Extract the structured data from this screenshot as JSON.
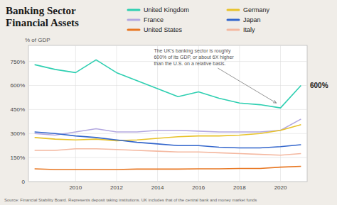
{
  "chart_data": {
    "type": "line",
    "title": "Banking Sector\nFinancial Assets",
    "ylabel": "% of GDP",
    "source": "Source: Financial Stability Board. Represents deposit taking institutions. UK includes that of the central bank and money market funds",
    "annotations": [
      {
        "text": "The UK’s banking sector is roughly\n600% of its GDP, or about 6X higher\nthan the U.S. on a relative basis.",
        "x": 2019.8,
        "y": 490
      },
      {
        "text": "600%",
        "y": 600
      }
    ],
    "x": [
      2008,
      2009,
      2010,
      2011,
      2012,
      2013,
      2014,
      2015,
      2016,
      2017,
      2018,
      2019,
      2020,
      2021
    ],
    "series": [
      {
        "name": "United Kingdom",
        "color": "#2ecfb1",
        "values": [
          730,
          700,
          680,
          760,
          680,
          630,
          580,
          530,
          560,
          520,
          490,
          480,
          460,
          600
        ]
      },
      {
        "name": "France",
        "color": "#b3a8e0",
        "values": [
          300,
          290,
          310,
          330,
          310,
          310,
          320,
          320,
          315,
          310,
          310,
          310,
          320,
          390
        ]
      },
      {
        "name": "United States",
        "color": "#e87722",
        "values": [
          80,
          75,
          75,
          75,
          75,
          78,
          78,
          78,
          80,
          80,
          82,
          82,
          90,
          95
        ]
      },
      {
        "name": "Germany",
        "color": "#e8c229",
        "values": [
          275,
          265,
          260,
          265,
          255,
          260,
          270,
          280,
          285,
          285,
          290,
          300,
          320,
          355
        ]
      },
      {
        "name": "Japan",
        "color": "#3366cc",
        "values": [
          310,
          300,
          285,
          275,
          260,
          245,
          235,
          225,
          225,
          215,
          210,
          210,
          218,
          230
        ]
      },
      {
        "name": "Italy",
        "color": "#f4b8a0",
        "values": [
          195,
          195,
          205,
          205,
          200,
          195,
          190,
          185,
          185,
          180,
          175,
          170,
          165,
          175
        ]
      }
    ],
    "xlim": [
      2007.7,
      2021.3
    ],
    "xticks": [
      2010,
      2012,
      2014,
      2016,
      2018,
      2020
    ],
    "ylim": [
      0,
      850
    ],
    "yticks": [
      0,
      {
        "value": 150,
        "label": "150%"
      },
      {
        "value": 300,
        "label": "300%"
      },
      {
        "value": 450,
        "label": "450%"
      },
      {
        "value": 600,
        "label": "600%"
      },
      {
        "value": 750,
        "label": "750%"
      }
    ],
    "grid": true,
    "legend": "top"
  }
}
